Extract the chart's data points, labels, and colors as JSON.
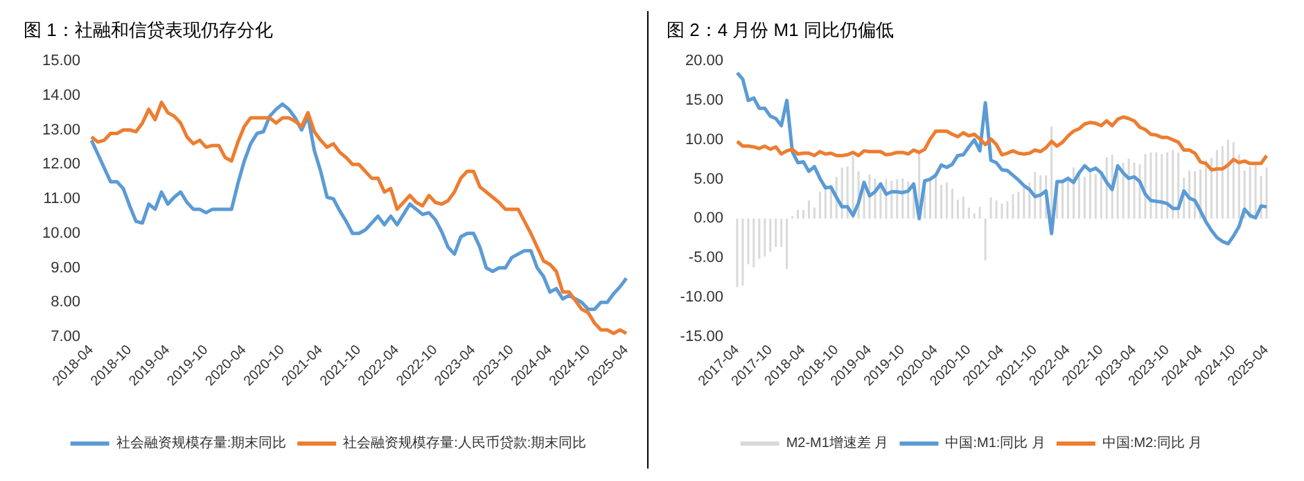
{
  "chart_data": [
    {
      "type": "line",
      "title": "图 1：社融和信贷表现仍存分化",
      "categories": [
        "2018-04",
        null,
        null,
        null,
        null,
        null,
        "2018-10",
        null,
        null,
        null,
        null,
        null,
        "2019-04",
        null,
        null,
        null,
        null,
        null,
        "2019-10",
        null,
        null,
        null,
        null,
        null,
        "2020-04",
        null,
        null,
        null,
        null,
        null,
        "2020-10",
        null,
        null,
        null,
        null,
        null,
        "2021-04",
        null,
        null,
        null,
        null,
        null,
        "2021-10",
        null,
        null,
        null,
        null,
        null,
        "2022-04",
        null,
        null,
        null,
        null,
        null,
        "2022-10",
        null,
        null,
        null,
        null,
        null,
        "2023-04",
        null,
        null,
        null,
        null,
        null,
        "2023-10",
        null,
        null,
        null,
        null,
        null,
        "2024-04",
        null,
        null,
        null,
        null,
        null,
        "2024-10",
        null,
        null,
        null,
        null,
        null,
        "2025-04"
      ],
      "series": [
        {
          "name": "社会融资规模存量:期末同比",
          "color": "#5b9bd5",
          "values": [
            12.7,
            12.3,
            11.9,
            11.5,
            11.5,
            11.3,
            10.8,
            10.35,
            10.3,
            10.85,
            10.7,
            11.2,
            10.85,
            11.05,
            11.2,
            10.9,
            10.7,
            10.7,
            10.6,
            10.7,
            10.7,
            10.7,
            10.7,
            11.45,
            12.1,
            12.6,
            12.9,
            12.95,
            13.4,
            13.6,
            13.75,
            13.6,
            13.35,
            13.0,
            13.4,
            12.4,
            11.8,
            11.05,
            11.0,
            10.65,
            10.35,
            10.0,
            10.0,
            10.1,
            10.3,
            10.5,
            10.25,
            10.5,
            10.25,
            10.55,
            10.85,
            10.7,
            10.55,
            10.6,
            10.4,
            10.05,
            9.6,
            9.4,
            9.9,
            10.0,
            10.0,
            9.6,
            9.0,
            8.9,
            9.0,
            9.0,
            9.3,
            9.4,
            9.5,
            9.5,
            9.0,
            8.75,
            8.3,
            8.4,
            8.1,
            8.2,
            8.1,
            8.0,
            7.8,
            7.8,
            8.0,
            8.0,
            8.25,
            8.45,
            8.7
          ]
        },
        {
          "name": "社会融资规模存量:人民币贷款:期末同比",
          "color": "#ed7d31",
          "values": [
            12.8,
            12.65,
            12.7,
            12.9,
            12.9,
            13.0,
            13.0,
            12.95,
            13.2,
            13.6,
            13.3,
            13.8,
            13.5,
            13.4,
            13.2,
            12.8,
            12.6,
            12.7,
            12.5,
            12.55,
            12.55,
            12.2,
            12.1,
            12.65,
            13.1,
            13.35,
            13.35,
            13.35,
            13.35,
            13.2,
            13.35,
            13.35,
            13.25,
            13.1,
            13.5,
            12.95,
            12.7,
            12.5,
            12.6,
            12.35,
            12.2,
            12.0,
            12.0,
            11.8,
            11.6,
            11.6,
            11.2,
            11.3,
            10.7,
            10.9,
            11.1,
            10.9,
            10.8,
            11.1,
            10.9,
            10.85,
            10.95,
            11.2,
            11.6,
            11.8,
            11.8,
            11.35,
            11.2,
            11.05,
            10.9,
            10.7,
            10.7,
            10.7,
            10.35,
            10.0,
            9.6,
            9.2,
            9.1,
            8.9,
            8.3,
            8.3,
            8.05,
            7.8,
            7.7,
            7.4,
            7.2,
            7.2,
            7.1,
            7.2,
            7.1
          ]
        }
      ],
      "ylim": [
        7,
        15
      ],
      "yticks": [
        {
          "value": 7,
          "label": "7.00"
        },
        {
          "value": 8,
          "label": "8.00"
        },
        {
          "value": 9,
          "label": "9.00"
        },
        {
          "value": 10,
          "label": "10.00"
        },
        {
          "value": 11,
          "label": "11.00"
        },
        {
          "value": 12,
          "label": "12.00"
        },
        {
          "value": 13,
          "label": "13.00"
        },
        {
          "value": 14,
          "label": "14.00"
        },
        {
          "value": 15,
          "label": "15.00"
        }
      ],
      "grid": false,
      "legend": "bottom",
      "marker": "none",
      "line_style": "solid"
    },
    {
      "type": "line",
      "title": "图 2：4 月份 M1 同比仍偏低",
      "categories": [
        "2017-04",
        null,
        null,
        null,
        null,
        null,
        "2017-10",
        null,
        null,
        null,
        null,
        null,
        "2018-04",
        null,
        null,
        null,
        null,
        null,
        "2018-10",
        null,
        null,
        null,
        null,
        null,
        "2019-04",
        null,
        null,
        null,
        null,
        null,
        "2019-10",
        null,
        null,
        null,
        null,
        null,
        "2020-04",
        null,
        null,
        null,
        null,
        null,
        "2020-10",
        null,
        null,
        null,
        null,
        null,
        "2021-04",
        null,
        null,
        null,
        null,
        null,
        "2021-10",
        null,
        null,
        null,
        null,
        null,
        "2022-04",
        null,
        null,
        null,
        null,
        null,
        "2022-10",
        null,
        null,
        null,
        null,
        null,
        "2023-04",
        null,
        null,
        null,
        null,
        null,
        "2023-10",
        null,
        null,
        null,
        null,
        null,
        "2024-04",
        null,
        null,
        null,
        null,
        null,
        "2024-10",
        null,
        null,
        null,
        null,
        null,
        "2025-04"
      ],
      "series": [
        {
          "name": "M2-M1增速差 月",
          "type": "bar",
          "color": "#d9d9d9",
          "values": [
            -8.7,
            -8.5,
            -5.8,
            -6.2,
            -5.1,
            -4.8,
            -4.2,
            -3.6,
            -3.6,
            -6.4,
            0.3,
            1.1,
            1.1,
            2.3,
            1.4,
            3.4,
            4.3,
            4.3,
            5.3,
            6.5,
            6.6,
            8.0,
            6.0,
            4.0,
            5.6,
            5.1,
            4.1,
            5.0,
            4.8,
            5.0,
            5.1,
            4.7,
            4.3,
            8.4,
            4.0,
            5.1,
            5.6,
            4.3,
            4.6,
            3.8,
            2.4,
            2.8,
            1.4,
            0.7,
            1.5,
            -5.3,
            2.7,
            2.3,
            1.9,
            2.2,
            3.1,
            3.4,
            4.0,
            4.6,
            5.9,
            5.5,
            5.5,
            11.7,
            4.5,
            5.0,
            5.4,
            6.5,
            5.6,
            5.3,
            6.1,
            5.7,
            6.0,
            7.8,
            8.1,
            5.9,
            7.1,
            7.6,
            7.1,
            6.9,
            8.2,
            8.4,
            8.4,
            8.2,
            8.4,
            8.7,
            8.4,
            5.2,
            6.1,
            6.0,
            6.2,
            7.4,
            7.7,
            8.7,
            9.2,
            10.0,
            9.7,
            8.1,
            6.1,
            6.6,
            6.9,
            5.4,
            6.5
          ]
        },
        {
          "name": "中国:M1:同比 月",
          "type": "line",
          "color": "#5b9bd5",
          "values": [
            18.5,
            17.7,
            15.0,
            15.3,
            14.0,
            14.0,
            13.0,
            12.7,
            11.8,
            15.0,
            8.5,
            7.1,
            7.2,
            6.0,
            6.6,
            5.1,
            3.9,
            4.0,
            2.7,
            1.5,
            1.5,
            0.4,
            2.0,
            4.6,
            2.9,
            3.4,
            4.4,
            3.1,
            3.4,
            3.4,
            3.3,
            3.5,
            4.4,
            0.0,
            4.8,
            5.0,
            5.5,
            6.8,
            6.5,
            6.9,
            8.0,
            8.1,
            9.1,
            10.0,
            8.6,
            14.7,
            7.4,
            7.1,
            6.2,
            6.1,
            5.5,
            4.9,
            4.2,
            3.7,
            2.8,
            3.0,
            3.5,
            -1.9,
            4.7,
            4.7,
            5.1,
            4.6,
            5.8,
            6.7,
            6.1,
            6.4,
            5.8,
            4.6,
            3.7,
            6.7,
            5.8,
            5.1,
            5.3,
            4.7,
            3.1,
            2.3,
            2.2,
            2.1,
            1.9,
            1.3,
            1.3,
            3.5,
            2.6,
            2.3,
            1.0,
            -0.4,
            -1.5,
            -2.4,
            -2.9,
            -3.2,
            -2.2,
            -1.0,
            1.2,
            0.4,
            0.1,
            1.6,
            1.5
          ]
        },
        {
          "name": "中国:M2:同比 月",
          "type": "line",
          "color": "#ed7d31",
          "values": [
            9.8,
            9.2,
            9.2,
            9.1,
            8.9,
            9.2,
            8.8,
            9.1,
            8.2,
            8.6,
            8.8,
            8.2,
            8.3,
            8.3,
            8.0,
            8.5,
            8.2,
            8.3,
            8.0,
            8.0,
            8.1,
            8.4,
            8.0,
            8.6,
            8.5,
            8.5,
            8.5,
            8.1,
            8.2,
            8.4,
            8.4,
            8.2,
            8.7,
            8.4,
            8.8,
            10.1,
            11.1,
            11.1,
            11.1,
            10.7,
            10.4,
            10.9,
            10.5,
            10.7,
            10.1,
            9.4,
            10.1,
            9.4,
            8.1,
            8.3,
            8.6,
            8.3,
            8.2,
            8.3,
            8.7,
            8.5,
            9.0,
            9.8,
            9.2,
            9.7,
            10.5,
            11.1,
            11.4,
            12.0,
            12.2,
            12.1,
            11.8,
            12.4,
            11.8,
            12.6,
            12.9,
            12.7,
            12.4,
            11.6,
            11.3,
            10.7,
            10.6,
            10.3,
            10.3,
            10.0,
            9.7,
            8.7,
            8.7,
            8.3,
            7.2,
            7.0,
            6.2,
            6.3,
            6.3,
            6.8,
            7.5,
            7.1,
            7.3,
            7.0,
            7.0,
            7.0,
            8.0
          ]
        }
      ],
      "ylim": [
        -15,
        20
      ],
      "yticks": [
        {
          "value": -15,
          "label": "-15.00"
        },
        {
          "value": -10,
          "label": "-10.00"
        },
        {
          "value": -5,
          "label": "-5.00"
        },
        {
          "value": 0,
          "label": "0.00"
        },
        {
          "value": 5,
          "label": "5.00"
        },
        {
          "value": 10,
          "label": "10.00"
        },
        {
          "value": 15,
          "label": "15.00"
        },
        {
          "value": 20,
          "label": "20.00"
        }
      ],
      "grid": false,
      "legend": "bottom",
      "marker": "none",
      "line_style": "solid"
    }
  ]
}
